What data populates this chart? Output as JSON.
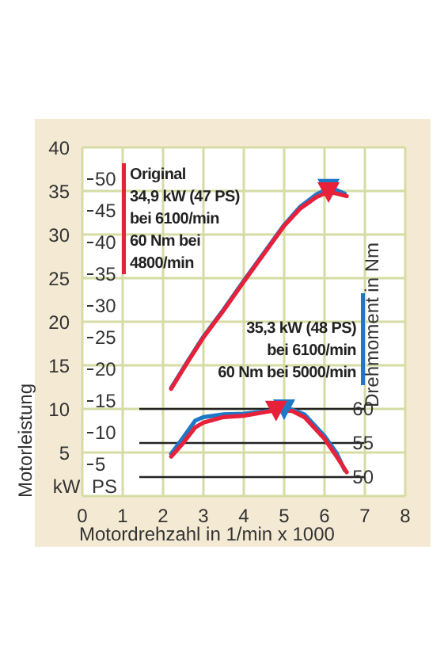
{
  "chart_data": {
    "type": "line",
    "xlabel": "Motordrehzahl in 1/min x 1000",
    "ylabel": "Motorleistung",
    "y2label": "PS",
    "y3label": "Drehmoment in Nm",
    "annotations": [
      "34,9 kW (47 PS)\nbei 6100/min\n60 Nm bei\n4800/min",
      "35,3 kW (48 PS)\nbei 6100/min\n60 Nm bei 5000/min",
      "kW"
    ],
    "xlim": [
      0,
      8
    ],
    "xticks": [
      0,
      1,
      2,
      3,
      4,
      5,
      6,
      7,
      8
    ],
    "ylim": [
      0,
      40
    ],
    "yticks": [
      5,
      10,
      15,
      20,
      25,
      30,
      35,
      40
    ],
    "y2lim": [
      0,
      55
    ],
    "y2ticks": [
      5,
      10,
      15,
      20,
      25,
      30,
      35,
      40,
      45,
      50
    ],
    "y3lim": [
      47.2,
      98.4
    ],
    "y3ticks": [
      50,
      55,
      60
    ],
    "grid": true,
    "legend": "top left",
    "line_style": "solid",
    "ref_lines": [
      {
        "axis": "y3",
        "value": 50,
        "color": "#222222"
      },
      {
        "axis": "y3",
        "value": 55,
        "color": "#222222"
      },
      {
        "axis": "y3",
        "value": 60,
        "color": "#222222"
      }
    ],
    "series": [
      {
        "color": "#1e78c8",
        "axis": "y",
        "x": [
          2.2,
          2.6,
          3.0,
          3.5,
          4.0,
          4.5,
          5.0,
          5.4,
          5.8,
          6.1,
          6.3,
          6.5
        ],
        "values": [
          12.4,
          15.4,
          18.3,
          21.4,
          24.7,
          27.9,
          31.1,
          33.2,
          34.6,
          35.3,
          35.1,
          34.7
        ]
      },
      {
        "name": "Original",
        "color": "#e8213a",
        "axis": "y",
        "x": [
          2.2,
          2.6,
          3.0,
          3.5,
          4.0,
          4.5,
          5.0,
          5.4,
          5.8,
          6.1,
          6.3,
          6.55
        ],
        "values": [
          12.3,
          15.3,
          18.2,
          21.3,
          24.6,
          27.8,
          31.0,
          33.0,
          34.3,
          34.9,
          34.7,
          34.4
        ]
      },
      {
        "color": "#1e78c8",
        "axis": "y3",
        "x": [
          2.2,
          2.5,
          2.8,
          3.0,
          3.5,
          4.0,
          4.5,
          5.0,
          5.2,
          5.5,
          6.0,
          6.3,
          6.5
        ],
        "values": [
          53.4,
          55.8,
          58.3,
          58.8,
          59.2,
          59.3,
          59.6,
          60.0,
          59.9,
          59.2,
          56.0,
          53.5,
          51.0
        ]
      },
      {
        "color": "#e8213a",
        "axis": "y3",
        "x": [
          2.2,
          2.5,
          2.8,
          3.0,
          3.5,
          4.0,
          4.5,
          4.8,
          5.2,
          5.5,
          6.0,
          6.3,
          6.55
        ],
        "values": [
          53.0,
          55.0,
          57.3,
          58.0,
          58.8,
          59.0,
          59.5,
          59.8,
          59.7,
          58.8,
          55.6,
          53.0,
          50.7
        ]
      },
      {
        "type": "scatter",
        "marker": "triangle",
        "color": "#1e78c8",
        "axis": "y",
        "x": [
          6.1
        ],
        "values": [
          35.3
        ]
      },
      {
        "type": "scatter",
        "marker": "triangle",
        "color": "#e8213a",
        "axis": "y",
        "x": [
          6.1
        ],
        "values": [
          34.9
        ]
      },
      {
        "type": "scatter",
        "marker": "triangle",
        "color": "#1e78c8",
        "axis": "y3",
        "x": [
          5.0
        ],
        "values": [
          60.0
        ]
      },
      {
        "type": "scatter",
        "marker": "triangle",
        "color": "#e8213a",
        "axis": "y3",
        "x": [
          4.8
        ],
        "values": [
          59.8
        ]
      }
    ]
  }
}
